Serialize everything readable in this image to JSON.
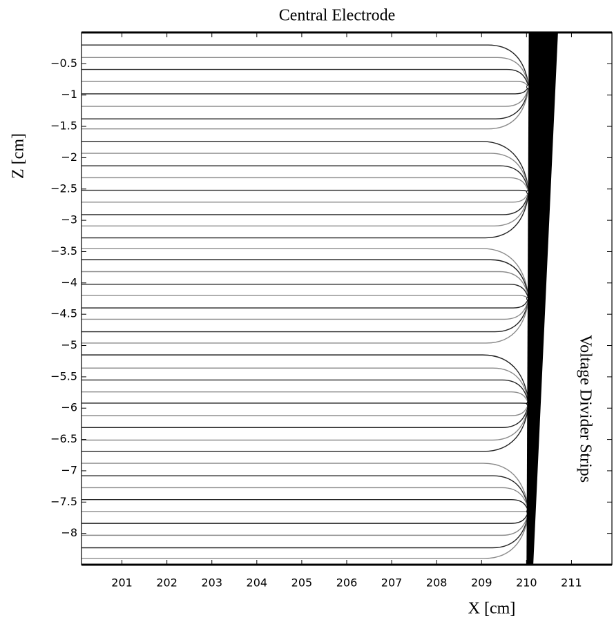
{
  "chart_data": {
    "type": "drift-lines",
    "title": "Central Electrode",
    "xlabel": "X [cm]",
    "ylabel": "Z [cm]",
    "annotation": "Voltage Divider Strips",
    "xlim": [
      200.1,
      211.9
    ],
    "ylim": [
      -8.5,
      0
    ],
    "xticks": [
      201,
      202,
      203,
      204,
      205,
      206,
      207,
      208,
      209,
      210,
      211
    ],
    "yticks": [
      {
        "value": -0.5,
        "label": "−0.5"
      },
      {
        "value": -1,
        "label": "−1"
      },
      {
        "value": -1.5,
        "label": "−1.5"
      },
      {
        "value": -2,
        "label": "−2"
      },
      {
        "value": -2.5,
        "label": "−2.5"
      },
      {
        "value": -3,
        "label": "−3"
      },
      {
        "value": -3.5,
        "label": "−3.5"
      },
      {
        "value": -4,
        "label": "−4"
      },
      {
        "value": -4.5,
        "label": "−4.5"
      },
      {
        "value": -5,
        "label": "−5"
      },
      {
        "value": -5.5,
        "label": "−5.5"
      },
      {
        "value": -6,
        "label": "−6"
      },
      {
        "value": -6.5,
        "label": "−6.5"
      },
      {
        "value": -7,
        "label": "−7"
      },
      {
        "value": -7.5,
        "label": "−7.5"
      },
      {
        "value": -8,
        "label": "−8"
      }
    ],
    "wire_x": 210.05,
    "wire_z": [
      -0.87,
      -2.55,
      -4.25,
      -5.93,
      -7.65
    ],
    "line_z": [
      -0.2,
      -0.4,
      -0.59,
      -0.78,
      -0.98,
      -1.18,
      -1.38,
      -1.54,
      -1.74,
      -1.93,
      -2.13,
      -2.32,
      -2.52,
      -2.71,
      -2.91,
      -3.09,
      -3.28,
      -3.45,
      -3.63,
      -3.82,
      -4.02,
      -4.2,
      -4.4,
      -4.58,
      -4.78,
      -4.96,
      -5.15,
      -5.36,
      -5.55,
      -5.74,
      -5.92,
      -6.12,
      -6.31,
      -6.51,
      -6.69,
      -6.88,
      -7.08,
      -7.27,
      -7.46,
      -7.65,
      -7.84,
      -8.03,
      -8.23,
      -8.4
    ],
    "strip_band": [
      [
        210.0,
        -8.5
      ],
      [
        210.15,
        -8.5
      ],
      [
        210.7,
        0
      ],
      [
        210.05,
        0
      ]
    ],
    "line_colors": [
      "#222222",
      "#8a8a8a"
    ],
    "strip_color": "#000000"
  }
}
